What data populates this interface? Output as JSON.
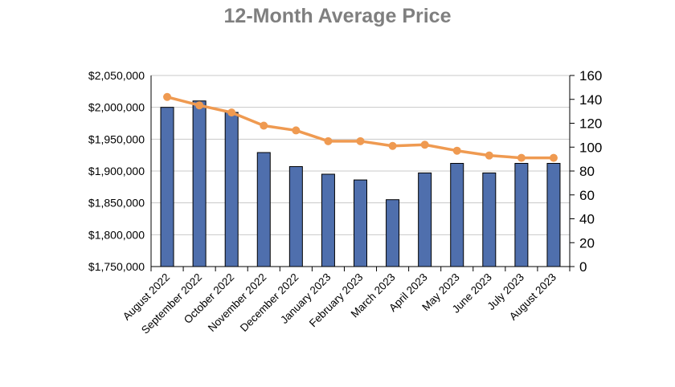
{
  "chart_data": {
    "type": "bar",
    "title": "12-Month Average Price",
    "categories": [
      "August 2022",
      "September 2022",
      "October 2022",
      "November 2022",
      "December 2022",
      "January 2023",
      "February 2023",
      "March 2023",
      "April 2023",
      "May 2023",
      "June 2023",
      "July 2023",
      "August 2023"
    ],
    "series": [
      {
        "type": "bar",
        "axis": "left",
        "color": "#4f6fad",
        "values": [
          2000000,
          2010000,
          1992000,
          1929000,
          1907000,
          1895000,
          1886000,
          1855000,
          1897000,
          1912000,
          1897000,
          1912000,
          1912000
        ]
      },
      {
        "type": "line",
        "axis": "right",
        "color": "#ef9a51",
        "values": [
          142,
          135,
          129,
          118,
          114,
          105,
          105,
          101,
          102,
          97,
          93,
          91,
          91
        ]
      }
    ],
    "y_left": {
      "ylim": [
        1750000,
        2050000
      ],
      "ticks": [
        1750000,
        1800000,
        1850000,
        1900000,
        1950000,
        2000000,
        2050000
      ],
      "tick_labels": [
        "$1,750,000",
        "$1,800,000",
        "$1,850,000",
        "$1,900,000",
        "$1,950,000",
        "$2,000,000",
        "$2,050,000"
      ]
    },
    "y_right": {
      "ylim": [
        0,
        160
      ],
      "ticks": [
        0,
        20,
        40,
        60,
        80,
        100,
        120,
        140,
        160
      ],
      "tick_labels": [
        "0",
        "20",
        "40",
        "60",
        "80",
        "100",
        "120",
        "140",
        "160"
      ]
    },
    "grid": true,
    "legend": "none"
  }
}
